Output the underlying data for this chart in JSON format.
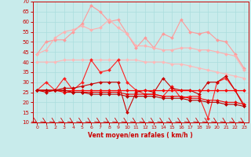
{
  "x": [
    0,
    1,
    2,
    3,
    4,
    5,
    6,
    7,
    8,
    9,
    10,
    11,
    12,
    13,
    14,
    15,
    16,
    17,
    18,
    19,
    20,
    21,
    22,
    23
  ],
  "series": [
    {
      "name": "rafales_light1",
      "color": "#FF9999",
      "linewidth": 0.8,
      "marker": "D",
      "markersize": 2.0,
      "y": [
        44,
        50,
        51,
        51,
        55,
        59,
        68,
        65,
        60,
        61,
        54,
        47,
        52,
        47,
        54,
        52,
        61,
        55,
        54,
        55,
        51,
        50,
        44,
        37
      ]
    },
    {
      "name": "rafales_light2",
      "color": "#FFB0B0",
      "linewidth": 0.8,
      "marker": "D",
      "markersize": 2.0,
      "y": [
        44,
        46,
        52,
        55,
        56,
        58,
        56,
        57,
        61,
        57,
        54,
        48,
        48,
        47,
        46,
        46,
        47,
        47,
        46,
        46,
        45,
        44,
        43,
        36
      ]
    },
    {
      "name": "moy_light",
      "color": "#FFB8B8",
      "linewidth": 0.8,
      "marker": "D",
      "markersize": 2.0,
      "y": [
        40,
        40,
        40,
        41,
        41,
        41,
        41,
        41,
        41,
        41,
        41,
        41,
        40,
        40,
        40,
        39,
        39,
        38,
        37,
        36,
        35,
        34,
        33,
        32
      ]
    },
    {
      "name": "wind_red1",
      "color": "#FF2020",
      "linewidth": 0.8,
      "marker": "D",
      "markersize": 2.0,
      "y": [
        26,
        30,
        26,
        32,
        26,
        30,
        41,
        35,
        36,
        41,
        30,
        26,
        24,
        24,
        23,
        28,
        22,
        23,
        23,
        12,
        30,
        32,
        26,
        19
      ]
    },
    {
      "name": "wind_red2",
      "color": "#CC0000",
      "linewidth": 0.8,
      "marker": "D",
      "markersize": 2.0,
      "y": [
        26,
        25,
        26,
        27,
        27,
        28,
        29,
        30,
        30,
        30,
        15,
        25,
        26,
        25,
        32,
        27,
        26,
        26,
        24,
        30,
        30,
        33,
        26,
        18
      ]
    },
    {
      "name": "wind_red3",
      "color": "#FF0000",
      "linewidth": 0.9,
      "marker": "D",
      "markersize": 2.0,
      "y": [
        26,
        26,
        26,
        26,
        26,
        26,
        26,
        26,
        26,
        26,
        26,
        26,
        26,
        26,
        26,
        26,
        26,
        26,
        26,
        26,
        26,
        26,
        26,
        26
      ]
    },
    {
      "name": "wind_red4",
      "color": "#EE0000",
      "linewidth": 0.8,
      "marker": "D",
      "markersize": 2.0,
      "y": [
        26,
        26,
        26,
        25,
        25,
        25,
        25,
        25,
        25,
        25,
        24,
        24,
        24,
        24,
        23,
        23,
        23,
        22,
        22,
        21,
        21,
        20,
        20,
        19
      ]
    },
    {
      "name": "wind_dark1",
      "color": "#BB0000",
      "linewidth": 0.8,
      "marker": "D",
      "markersize": 2.0,
      "y": [
        26,
        26,
        26,
        26,
        25,
        25,
        24,
        24,
        24,
        24,
        23,
        23,
        23,
        23,
        22,
        22,
        22,
        21,
        21,
        20,
        20,
        19,
        19,
        18
      ]
    }
  ],
  "xlim": [
    -0.5,
    23.5
  ],
  "ylim": [
    10,
    70
  ],
  "yticks": [
    10,
    15,
    20,
    25,
    30,
    35,
    40,
    45,
    50,
    55,
    60,
    65,
    70
  ],
  "xticks": [
    0,
    1,
    2,
    3,
    4,
    5,
    6,
    7,
    8,
    9,
    10,
    11,
    12,
    13,
    14,
    15,
    16,
    17,
    18,
    19,
    20,
    21,
    22,
    23
  ],
  "xtick_labels": [
    "0",
    "1",
    "2",
    "3",
    "4",
    "5",
    "6",
    "7",
    "8",
    "9",
    "10",
    "11",
    "12",
    "13",
    "14",
    "15",
    "16",
    "17",
    "18",
    "19",
    "20",
    "21",
    "22",
    "23"
  ],
  "xlabel": "Vent moyen/en rafales ( km/h )",
  "bg_color": "#C8EBEB",
  "grid_color": "#AADDDD",
  "tick_color": "#CC0000",
  "label_color": "#CC0000"
}
